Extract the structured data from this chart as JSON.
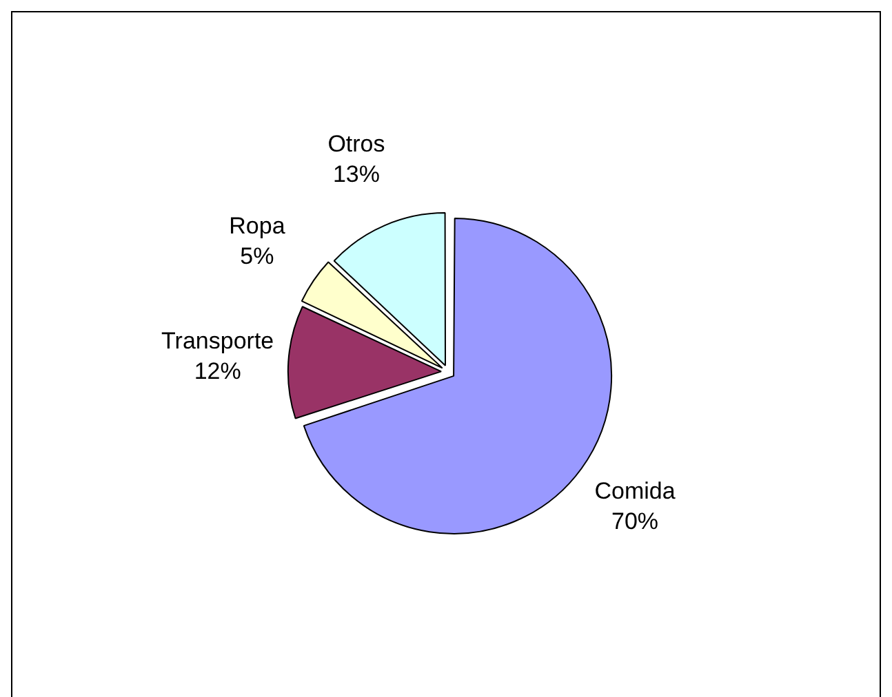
{
  "chart_data": {
    "type": "pie",
    "categories": [
      "Comida",
      "Transporte",
      "Ropa",
      "Otros"
    ],
    "values": [
      70,
      12,
      5,
      13
    ],
    "colors": [
      "#9999ff",
      "#993366",
      "#ffffcc",
      "#ccffff"
    ],
    "value_labels": [
      "70%",
      "12%",
      "5%",
      "13%"
    ],
    "legend": false
  }
}
